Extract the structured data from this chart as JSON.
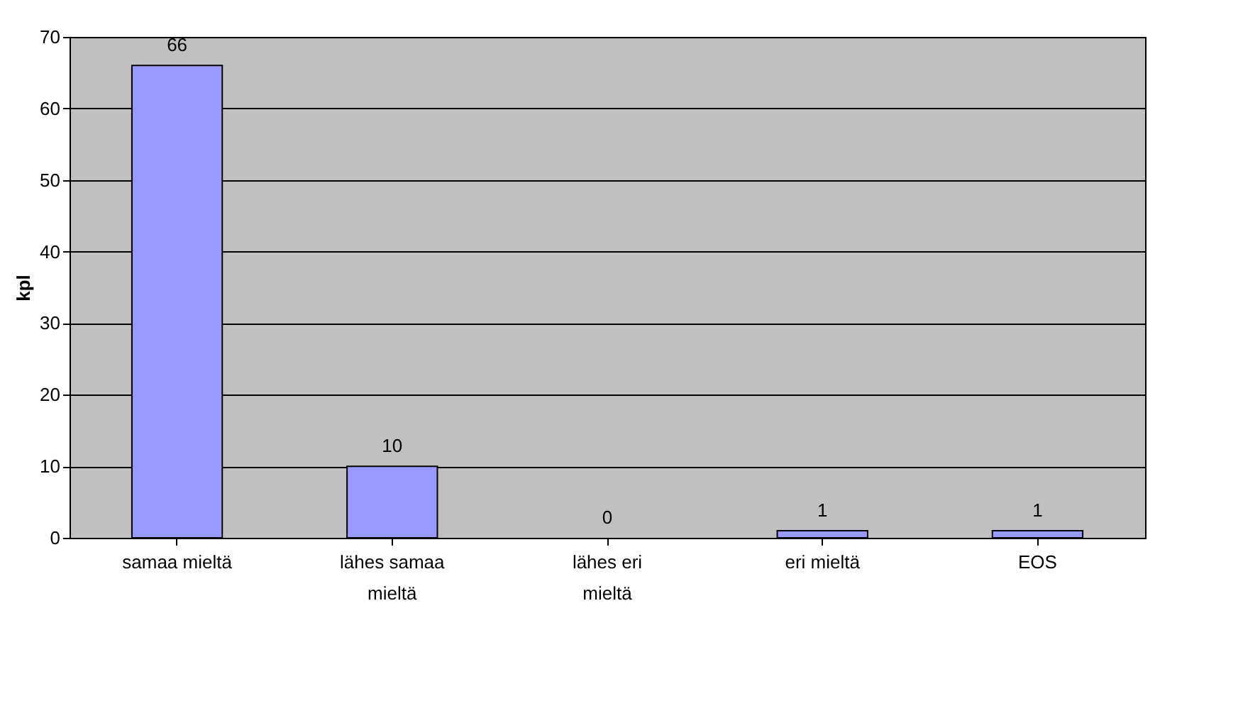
{
  "chart_data": {
    "type": "bar",
    "categories": [
      "samaa mieltä",
      "lähes samaa mieltä",
      "lähes eri mieltä",
      "eri mieltä",
      "EOS"
    ],
    "values": [
      66,
      10,
      0,
      1,
      1
    ],
    "color": "#9999ff",
    "ylabel": "kpl",
    "ylim": [
      0,
      70
    ],
    "yticks": [
      0,
      10,
      20,
      30,
      40,
      50,
      60,
      70
    ],
    "grid": "y",
    "data_labels": true
  }
}
